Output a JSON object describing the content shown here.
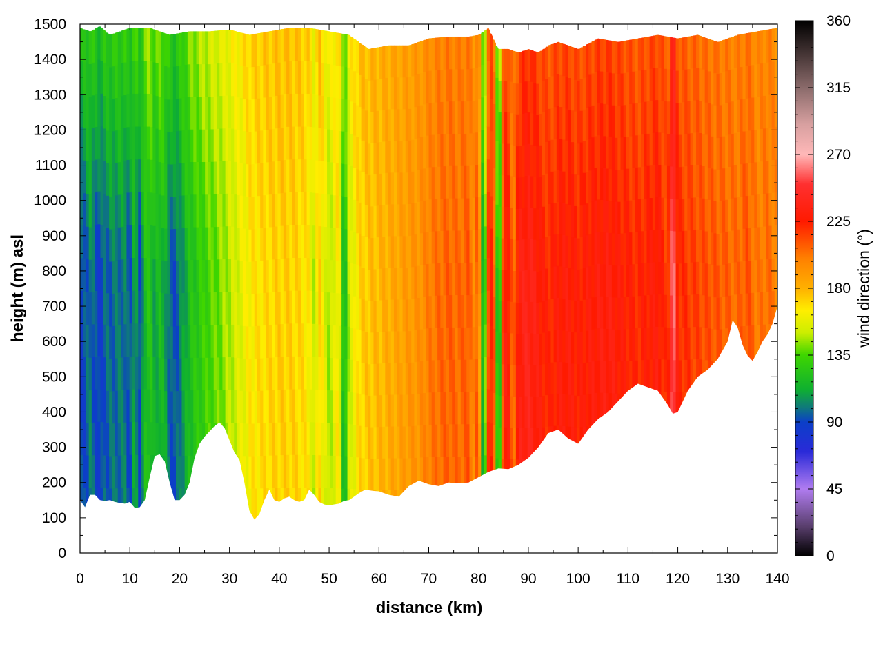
{
  "chart_data": {
    "type": "heatmap",
    "title": "",
    "xlabel": "distance (km)",
    "ylabel": "height (m) asl",
    "colorbar_label": "wind direction (°)",
    "xlim": [
      0,
      140
    ],
    "ylim": [
      0,
      1500
    ],
    "clim": [
      0,
      360
    ],
    "x_ticks": [
      0,
      10,
      20,
      30,
      40,
      50,
      60,
      70,
      80,
      90,
      100,
      110,
      120,
      130,
      140
    ],
    "y_ticks": [
      0,
      100,
      200,
      300,
      400,
      500,
      600,
      700,
      800,
      900,
      1000,
      1100,
      1200,
      1300,
      1400,
      1500
    ],
    "c_ticks": [
      0,
      45,
      90,
      135,
      180,
      225,
      270,
      315,
      360
    ],
    "grid": true,
    "colormap": [
      {
        "v": 0,
        "color": "#000000"
      },
      {
        "v": 20,
        "color": "#5a3f6e"
      },
      {
        "v": 45,
        "color": "#b07cf0"
      },
      {
        "v": 70,
        "color": "#2a2ad8"
      },
      {
        "v": 90,
        "color": "#0b3fc8"
      },
      {
        "v": 100,
        "color": "#0f7a7a"
      },
      {
        "v": 112,
        "color": "#0fb030"
      },
      {
        "v": 135,
        "color": "#3ed600"
      },
      {
        "v": 150,
        "color": "#ccee00"
      },
      {
        "v": 165,
        "color": "#ffee00"
      },
      {
        "v": 180,
        "color": "#ffb000"
      },
      {
        "v": 200,
        "color": "#ff8000"
      },
      {
        "v": 225,
        "color": "#ff1a00"
      },
      {
        "v": 250,
        "color": "#ff3030"
      },
      {
        "v": 270,
        "color": "#ffb8b8"
      },
      {
        "v": 290,
        "color": "#d8a0a0"
      },
      {
        "v": 315,
        "color": "#8a6a6a"
      },
      {
        "v": 360,
        "color": "#000000"
      }
    ],
    "terrain": {
      "distance_km": [
        0,
        1,
        2,
        3,
        4,
        5,
        6,
        7,
        8,
        9,
        10,
        11,
        12,
        13,
        14,
        15,
        16,
        17,
        18,
        19,
        20,
        21,
        22,
        23,
        24,
        25,
        26,
        27,
        28,
        29,
        30,
        31,
        32,
        33,
        34,
        35,
        36,
        37,
        38,
        39,
        40,
        41,
        42,
        43,
        44,
        45,
        46,
        47,
        48,
        49,
        50,
        51,
        52,
        53,
        54,
        55,
        56,
        57,
        58,
        59,
        60,
        62,
        64,
        66,
        68,
        70,
        72,
        74,
        76,
        78,
        80,
        82,
        84,
        86,
        88,
        90,
        92,
        94,
        96,
        98,
        100,
        102,
        104,
        106,
        108,
        110,
        112,
        114,
        116,
        118,
        119,
        120,
        122,
        124,
        126,
        128,
        130,
        131,
        132,
        133,
        134,
        135,
        136,
        137,
        138,
        139,
        140
      ],
      "height_m": [
        150,
        130,
        165,
        165,
        150,
        148,
        150,
        145,
        142,
        140,
        145,
        128,
        130,
        150,
        215,
        275,
        280,
        260,
        200,
        150,
        150,
        165,
        200,
        270,
        310,
        330,
        345,
        360,
        370,
        355,
        320,
        285,
        265,
        200,
        120,
        95,
        110,
        150,
        180,
        150,
        145,
        155,
        160,
        150,
        145,
        150,
        180,
        165,
        145,
        138,
        135,
        138,
        140,
        148,
        150,
        160,
        170,
        178,
        178,
        176,
        175,
        165,
        160,
        190,
        205,
        195,
        190,
        200,
        198,
        200,
        215,
        230,
        240,
        238,
        250,
        270,
        300,
        340,
        350,
        325,
        310,
        350,
        380,
        400,
        430,
        460,
        480,
        470,
        460,
        420,
        395,
        400,
        460,
        500,
        520,
        550,
        600,
        660,
        640,
        590,
        560,
        545,
        570,
        600,
        620,
        650,
        700
      ]
    },
    "data_top": {
      "distance_km": [
        0,
        2,
        4,
        6,
        8,
        10,
        14,
        18,
        22,
        26,
        30,
        34,
        38,
        42,
        46,
        50,
        54,
        58,
        62,
        66,
        70,
        74,
        78,
        80,
        82,
        84,
        86,
        88,
        90,
        92,
        94,
        96,
        98,
        100,
        104,
        108,
        112,
        116,
        120,
        124,
        128,
        132,
        136,
        140
      ],
      "height_m": [
        1490,
        1480,
        1495,
        1470,
        1480,
        1490,
        1490,
        1470,
        1480,
        1480,
        1485,
        1470,
        1480,
        1490,
        1490,
        1480,
        1470,
        1430,
        1440,
        1440,
        1460,
        1465,
        1465,
        1470,
        1490,
        1430,
        1430,
        1420,
        1430,
        1420,
        1440,
        1450,
        1440,
        1430,
        1460,
        1450,
        1460,
        1470,
        1460,
        1470,
        1450,
        1470,
        1480,
        1490
      ]
    },
    "direction_columns": {
      "distance_km": [
        0,
        1,
        2,
        3,
        4,
        5,
        7,
        9,
        10,
        11,
        12,
        13,
        14,
        15,
        16,
        17,
        18,
        19,
        20,
        22,
        24,
        26,
        28,
        30,
        32,
        34,
        36,
        38,
        40,
        42,
        44,
        46,
        47,
        48,
        50,
        52,
        53,
        54,
        56,
        58,
        60,
        62,
        64,
        66,
        68,
        70,
        72,
        74,
        76,
        78,
        79,
        80,
        81,
        82,
        83,
        84,
        85,
        86,
        87,
        88,
        89,
        90,
        92,
        94,
        96,
        98,
        100,
        102,
        104,
        106,
        108,
        110,
        112,
        114,
        116,
        118,
        119,
        120,
        122,
        124,
        126,
        128,
        130,
        132,
        134,
        136,
        138,
        140
      ],
      "direction_deg": [
        88,
        92,
        100,
        92,
        86,
        95,
        98,
        100,
        90,
        112,
        90,
        118,
        125,
        110,
        118,
        112,
        96,
        92,
        100,
        120,
        128,
        135,
        140,
        148,
        155,
        165,
        168,
        170,
        172,
        172,
        170,
        165,
        150,
        172,
        145,
        168,
        110,
        150,
        170,
        175,
        178,
        182,
        185,
        190,
        192,
        200,
        205,
        208,
        205,
        210,
        195,
        215,
        90,
        220,
        225,
        85,
        230,
        228,
        200,
        232,
        235,
        238,
        230,
        222,
        228,
        230,
        225,
        228,
        230,
        232,
        228,
        225,
        222,
        226,
        230,
        215,
        270,
        222,
        218,
        215,
        212,
        210,
        208,
        205,
        212,
        200,
        205,
        198
      ]
    }
  }
}
